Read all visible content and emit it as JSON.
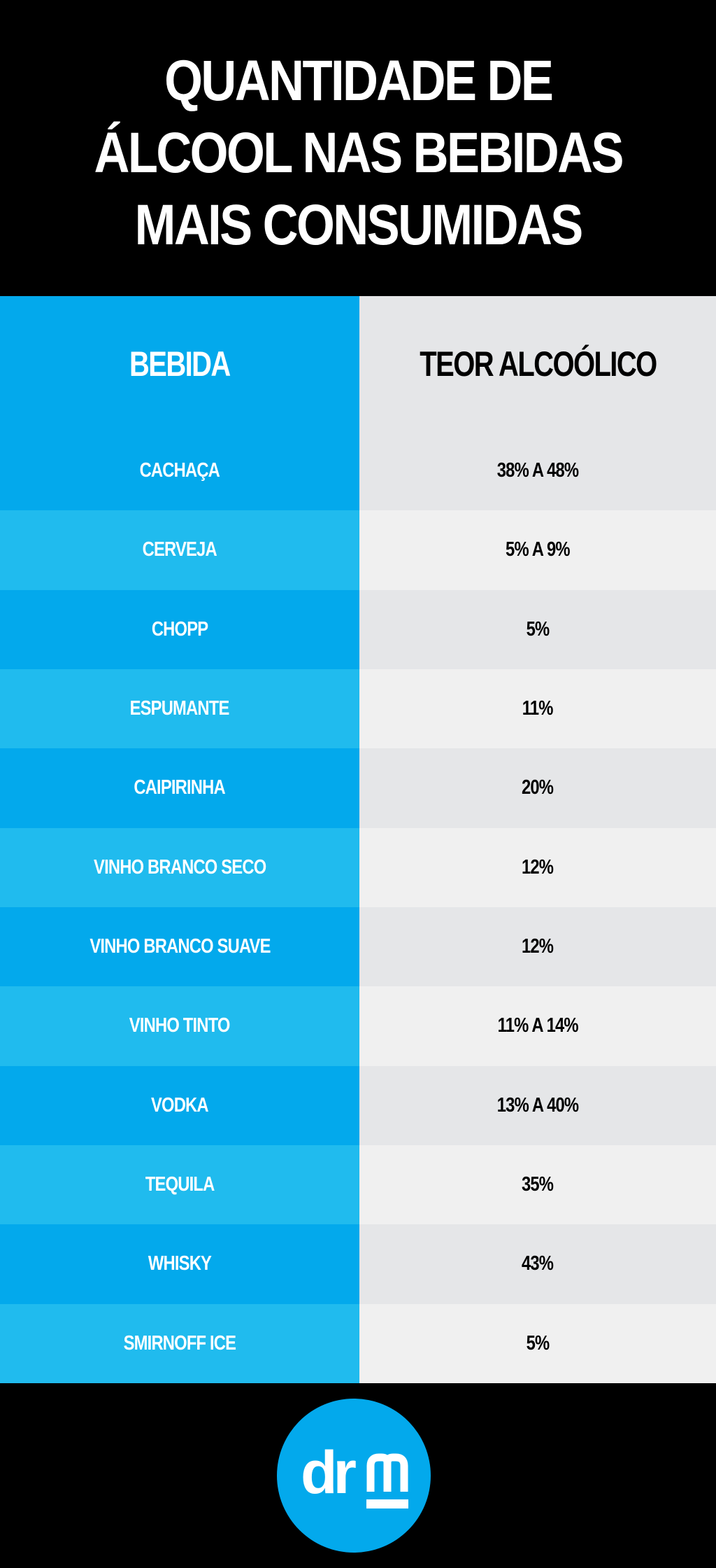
{
  "header": {
    "title_line1": "QUANTIDADE DE",
    "title_line2": "ÁLCOOL NAS BEBIDAS",
    "title_line3": "MAIS CONSUMIDAS"
  },
  "table": {
    "columns": [
      "BEBIDA",
      "TEOR ALCOÓLICO"
    ],
    "rows": [
      {
        "drink": "CACHAÇA",
        "alcohol": "38% A 48%"
      },
      {
        "drink": "CERVEJA",
        "alcohol": "5% A 9%"
      },
      {
        "drink": "CHOPP",
        "alcohol": "5%"
      },
      {
        "drink": "ESPUMANTE",
        "alcohol": "11%"
      },
      {
        "drink": "CAIPIRINHA",
        "alcohol": "20%"
      },
      {
        "drink": "VINHO BRANCO SECO",
        "alcohol": "12%"
      },
      {
        "drink": "VINHO BRANCO SUAVE",
        "alcohol": "12%"
      },
      {
        "drink": "VINHO TINTO",
        "alcohol": "11% A 14%"
      },
      {
        "drink": "VODKA",
        "alcohol": "13% A 40%"
      },
      {
        "drink": "TEQUILA",
        "alcohol": "35%"
      },
      {
        "drink": "WHISKY",
        "alcohol": "43%"
      },
      {
        "drink": "SMIRNOFF ICE",
        "alcohol": "5%"
      }
    ]
  },
  "footer": {
    "logo_text": "drm",
    "logo_icon": "drm-logo-icon"
  },
  "colors": {
    "background": "#000000",
    "accent_blue": "#03a9ec",
    "accent_blue_light": "#20bbee",
    "gray_dark": "#e5e6e8",
    "gray_light": "#f0f0f0"
  }
}
